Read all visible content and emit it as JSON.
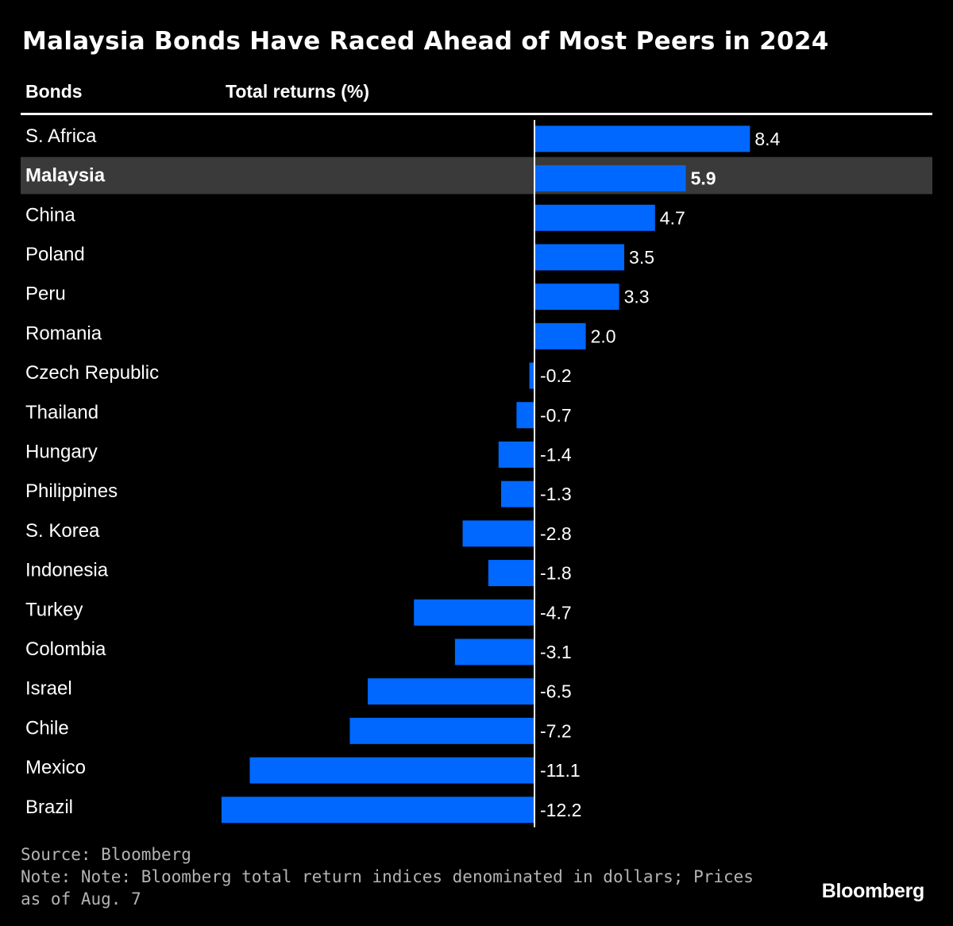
{
  "title": "Malaysia Bonds Have Raced Ahead of Most Peers in 2024",
  "headers": {
    "bonds": "Bonds",
    "returns": "Total returns (%)"
  },
  "footer": {
    "source": "Source: Bloomberg",
    "note": "Note: Note: Bloomberg total return indices denominated in dollars; Prices as of Aug. 7",
    "logo": "Bloomberg"
  },
  "colors": {
    "bar": "#0068ff",
    "highlight_row": "#3a3a3a",
    "background": "#000000",
    "text": "#ffffff"
  },
  "chart_data": {
    "type": "bar",
    "orientation": "horizontal",
    "title": "Malaysia Bonds Have Raced Ahead of Most Peers in 2024",
    "xlabel": "Total returns (%)",
    "ylabel": "Bonds",
    "highlight": "Malaysia",
    "categories": [
      "S. Africa",
      "Malaysia",
      "China",
      "Poland",
      "Peru",
      "Romania",
      "Czech Republic",
      "Thailand",
      "Hungary",
      "Philippines",
      "S. Korea",
      "Indonesia",
      "Turkey",
      "Colombia",
      "Israel",
      "Chile",
      "Mexico",
      "Brazil"
    ],
    "values": [
      8.4,
      5.9,
      4.7,
      3.5,
      3.3,
      2.0,
      -0.2,
      -0.7,
      -1.4,
      -1.3,
      -2.8,
      -1.8,
      -4.7,
      -3.1,
      -6.5,
      -7.2,
      -11.1,
      -12.2
    ],
    "labels": [
      "8.4",
      "5.9",
      "4.7",
      "3.5",
      "3.3",
      "2.0",
      "-0.2",
      "-0.7",
      "-1.4",
      "-1.3",
      "-2.8",
      "-1.8",
      "-4.7",
      "-3.1",
      "-6.5",
      "-7.2",
      "-11.1",
      "-12.2"
    ],
    "grid": false
  }
}
